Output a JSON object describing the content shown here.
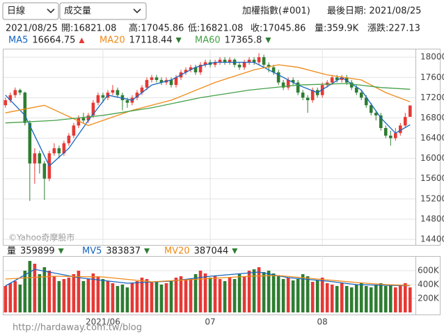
{
  "controls": {
    "period": "日線",
    "indicator": "成交量"
  },
  "header": {
    "symbol": "加權指數(#001)",
    "last_date": "最後日期: 2021/08/25"
  },
  "info": [
    "2021/08/25",
    "開:16821.08",
    "高:17045.86",
    "低:16821.08",
    "收:17045.86",
    "量:359.9K",
    "漲跌:227.13"
  ],
  "watermark": "©Yahoo奇摩股市",
  "footer_url": "http://hardaway.com.tw/blog",
  "chart_data": [
    {
      "type": "candlestick",
      "up_color": "#e53935",
      "down_color": "#2e7d32",
      "xlim": [
        -0.4,
        84.1
      ],
      "xticks": [
        {
          "value": 20,
          "label": "2021/06"
        },
        {
          "value": 42,
          "label": "07"
        },
        {
          "value": 65,
          "label": "08"
        }
      ],
      "ylim": [
        14290,
        18140
      ],
      "yticks": [
        14400,
        14800,
        15200,
        15600,
        16000,
        16400,
        16800,
        17200,
        17600,
        18000
      ],
      "grid": true,
      "open": [
        17050,
        17150,
        17250,
        17350,
        17300,
        16700,
        15900,
        16100,
        15900,
        15600,
        16100,
        16200,
        16100,
        16300,
        16450,
        16650,
        16800,
        16750,
        16850,
        17100,
        17250,
        17200,
        17300,
        17350,
        17250,
        17150,
        17100,
        17200,
        17300,
        17400,
        17550,
        17600,
        17550,
        17500,
        17550,
        17450,
        17600,
        17700,
        17750,
        17800,
        17700,
        17850,
        17900,
        17850,
        17900,
        17950,
        17900,
        17950,
        17850,
        17800,
        17900,
        17950,
        17900,
        18000,
        17850,
        17800,
        17700,
        17500,
        17400,
        17550,
        17500,
        17300,
        17200,
        17150,
        17350,
        17250,
        17450,
        17500,
        17600,
        17550,
        17600,
        17500,
        17400,
        17300,
        17200,
        17050,
        16900,
        16850,
        16600,
        16450,
        16400,
        16500,
        16650,
        16821.08
      ],
      "high": [
        17200,
        17300,
        17400,
        17380,
        17320,
        16750,
        16200,
        16150,
        15950,
        16150,
        16300,
        16250,
        16350,
        16500,
        16700,
        16850,
        16900,
        16900,
        17150,
        17300,
        17300,
        17350,
        17450,
        17400,
        17300,
        17200,
        17250,
        17350,
        17450,
        17600,
        17650,
        17650,
        17600,
        17600,
        17600,
        17650,
        17750,
        17800,
        17850,
        17850,
        17900,
        17950,
        17950,
        17950,
        18000,
        18000,
        18000,
        17980,
        17900,
        17950,
        18000,
        18000,
        18080,
        18050,
        17900,
        17850,
        17750,
        17550,
        17600,
        17600,
        17550,
        17350,
        17250,
        17400,
        17400,
        17500,
        17550,
        17650,
        17650,
        17650,
        17650,
        17550,
        17450,
        17350,
        17250,
        17100,
        16950,
        16900,
        16650,
        16550,
        16600,
        16700,
        16900,
        17045.86
      ],
      "low": [
        17000,
        17100,
        17200,
        17250,
        16650,
        15160,
        15500,
        15700,
        15180,
        15550,
        16050,
        16000,
        16050,
        16250,
        16400,
        16600,
        16700,
        16700,
        16800,
        17050,
        17100,
        17150,
        17250,
        17200,
        16950,
        17000,
        17050,
        17150,
        17250,
        17350,
        17500,
        17500,
        17450,
        17450,
        17400,
        17400,
        17550,
        17650,
        17700,
        17650,
        17650,
        17800,
        17800,
        17800,
        17850,
        17850,
        17850,
        17800,
        17750,
        17750,
        17850,
        17850,
        17850,
        17800,
        17700,
        17650,
        17450,
        17350,
        17350,
        17450,
        17250,
        17150,
        16900,
        17100,
        17200,
        17200,
        17400,
        17450,
        17500,
        17500,
        17450,
        17350,
        17250,
        17150,
        17000,
        16850,
        16750,
        16550,
        16400,
        16250,
        16350,
        16450,
        16600,
        16821.08
      ],
      "close": [
        17150,
        17250,
        17350,
        17300,
        16700,
        15900,
        16100,
        15900,
        15600,
        16100,
        16200,
        16100,
        16300,
        16450,
        16650,
        16800,
        16750,
        16850,
        17100,
        17250,
        17200,
        17300,
        17350,
        17250,
        17150,
        17100,
        17200,
        17300,
        17400,
        17550,
        17600,
        17550,
        17500,
        17550,
        17450,
        17600,
        17700,
        17750,
        17800,
        17700,
        17850,
        17900,
        17850,
        17900,
        17950,
        17900,
        17950,
        17850,
        17800,
        17900,
        17950,
        17900,
        18000,
        17850,
        17800,
        17700,
        17500,
        17400,
        17550,
        17500,
        17300,
        17200,
        17150,
        17350,
        17250,
        17450,
        17500,
        17600,
        17550,
        17600,
        17500,
        17400,
        17300,
        17200,
        17050,
        16900,
        16850,
        16600,
        16450,
        16400,
        16500,
        16650,
        16818.73,
        17045.86
      ],
      "series": [
        {
          "name": "MA5",
          "color": "#1565c0",
          "last": 16664.75,
          "trend": "up",
          "x": [
            0,
            4,
            9,
            13,
            17,
            21,
            26,
            30,
            34,
            39,
            43,
            47,
            51,
            56,
            60,
            64,
            69,
            73,
            77,
            80,
            83
          ],
          "values": [
            17250,
            16850,
            15850,
            16200,
            16750,
            17250,
            17150,
            17450,
            17550,
            17800,
            17900,
            17900,
            17900,
            17650,
            17450,
            17300,
            17600,
            17350,
            16800,
            16500,
            16664.75
          ]
        },
        {
          "name": "MA20",
          "color": "#ef8a17",
          "last": 17118.44,
          "trend": "down",
          "x": [
            0,
            8,
            17,
            26,
            34,
            43,
            51,
            56,
            60,
            66,
            73,
            78,
            83
          ],
          "values": [
            16900,
            17050,
            16650,
            16950,
            17150,
            17500,
            17750,
            17850,
            17800,
            17650,
            17550,
            17300,
            17118.44
          ]
        },
        {
          "name": "MA60",
          "color": "#43a047",
          "last": 17365.8,
          "trend": "down",
          "x": [
            0,
            10,
            20,
            30,
            40,
            50,
            60,
            70,
            77,
            83
          ],
          "values": [
            16700,
            16750,
            16850,
            17000,
            17200,
            17350,
            17450,
            17480,
            17400,
            17365.8
          ]
        }
      ]
    },
    {
      "type": "bar",
      "name": "量",
      "last": 359899,
      "trend": "down",
      "xlim": [
        -0.4,
        84.1
      ],
      "ylim": [
        0,
        800000
      ],
      "yticks": [
        {
          "value": 200000,
          "label": "200K"
        },
        {
          "value": 400000,
          "label": "400K"
        },
        {
          "value": 600000,
          "label": "600K"
        }
      ],
      "values": [
        380000,
        420000,
        450000,
        400000,
        600000,
        740000,
        700000,
        550000,
        650000,
        600000,
        520000,
        450000,
        480000,
        500000,
        550000,
        600000,
        450000,
        480000,
        560000,
        520000,
        480000,
        450000,
        420000,
        380000,
        400000,
        360000,
        420000,
        450000,
        500000,
        480000,
        430000,
        450000,
        400000,
        420000,
        450000,
        500000,
        520000,
        470000,
        480000,
        550000,
        600000,
        560000,
        500000,
        520000,
        480000,
        450000,
        500000,
        480000,
        550000,
        520000,
        600000,
        620000,
        650000,
        580000,
        600000,
        560000,
        520000,
        480000,
        500000,
        460000,
        480000,
        550000,
        520000,
        440000,
        460000,
        500000,
        420000,
        400000,
        380000,
        420000,
        380000,
        360000,
        400000,
        420000,
        380000,
        360000,
        400000,
        420000,
        380000,
        400000,
        360000,
        380000,
        420000,
        359899
      ],
      "series": [
        {
          "name": "MV5",
          "color": "#1565c0",
          "last": 383837,
          "trend": "down",
          "x": [
            0,
            6,
            15,
            25,
            34,
            42,
            52,
            58,
            66,
            72,
            78,
            83
          ],
          "values": [
            380000,
            620000,
            500000,
            420000,
            450000,
            520000,
            580000,
            500000,
            450000,
            400000,
            390000,
            383837
          ]
        },
        {
          "name": "MV20",
          "color": "#ef8a17",
          "last": 387044,
          "trend": "down",
          "x": [
            0,
            10,
            20,
            30,
            40,
            50,
            56,
            64,
            72,
            78,
            83
          ],
          "values": [
            480000,
            520000,
            510000,
            440000,
            480000,
            520000,
            530000,
            480000,
            430000,
            400000,
            387044
          ]
        }
      ]
    }
  ]
}
